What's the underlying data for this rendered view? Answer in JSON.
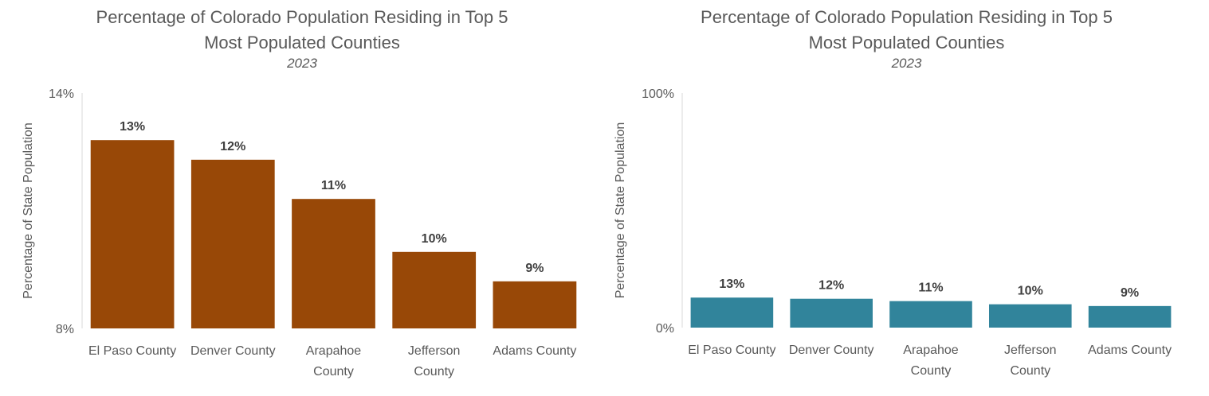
{
  "chart_data": [
    {
      "type": "bar",
      "title_lines": [
        "Percentage of Colorado Population Residing in Top 5",
        "Most Populated Counties"
      ],
      "subtitle": "2023",
      "ylabel": "Percentage of State  Population",
      "xlabel": "",
      "ylim": [
        8,
        14
      ],
      "yticks": [
        "8%",
        "14%"
      ],
      "categories": [
        [
          "El Paso County"
        ],
        [
          "Denver County"
        ],
        [
          "Arapahoe",
          "County"
        ],
        [
          "Jefferson",
          "County"
        ],
        [
          "Adams County"
        ]
      ],
      "values": [
        12.8,
        12.3,
        11.3,
        9.95,
        9.2
      ],
      "data_labels": [
        "13%",
        "12%",
        "11%",
        "10%",
        "9%"
      ],
      "color": "#984807",
      "grid": false,
      "legend": "none"
    },
    {
      "type": "bar",
      "title_lines": [
        "Percentage of Colorado Population Residing in Top 5",
        "Most Populated Counties"
      ],
      "subtitle": "2023",
      "ylabel": "Percentage of State  Population",
      "xlabel": "",
      "ylim": [
        0,
        100
      ],
      "yticks": [
        "0%",
        "100%"
      ],
      "categories": [
        [
          "El Paso County"
        ],
        [
          "Denver County"
        ],
        [
          "Arapahoe",
          "County"
        ],
        [
          "Jefferson",
          "County"
        ],
        [
          "Adams County"
        ]
      ],
      "values": [
        12.8,
        12.3,
        11.3,
        9.95,
        9.2
      ],
      "data_labels": [
        "13%",
        "12%",
        "11%",
        "10%",
        "9%"
      ],
      "color": "#31849b",
      "grid": false,
      "legend": "none"
    }
  ]
}
